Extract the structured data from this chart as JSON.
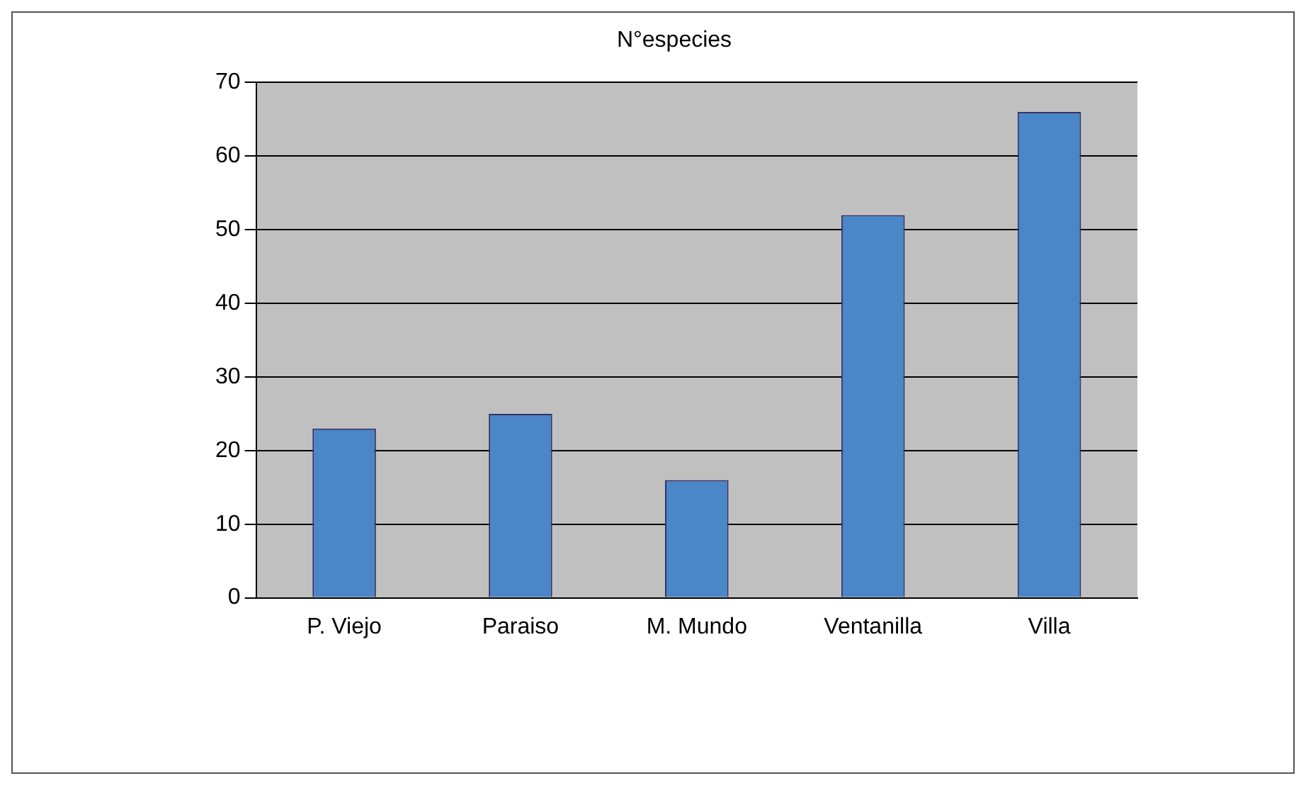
{
  "chart_data": {
    "type": "bar",
    "title": "N°especies",
    "categories": [
      "P. Viejo",
      "Paraiso",
      "M. Mundo",
      "Ventanilla",
      "Villa"
    ],
    "values": [
      23,
      25,
      16,
      52,
      66
    ],
    "color": "#4a86c8",
    "ylim": [
      0,
      70
    ],
    "yticks": [
      0,
      10,
      20,
      30,
      40,
      50,
      60,
      70
    ],
    "grid": "y"
  }
}
